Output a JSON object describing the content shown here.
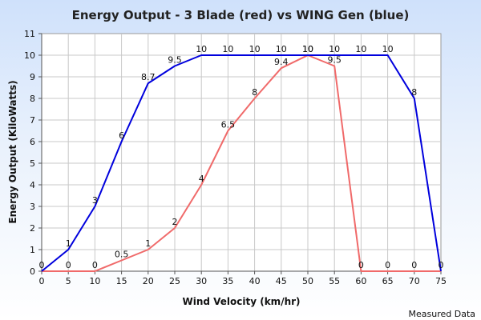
{
  "chart_data": {
    "type": "line",
    "title": "Energy Output - 3 Blade (red) vs WING Gen (blue)",
    "xlabel": "Wind Velocity (km/hr)",
    "ylabel": "Energy Output (KiloWatts)",
    "xlim": [
      0,
      75
    ],
    "ylim": [
      0,
      11
    ],
    "x_ticks": [
      0,
      5,
      10,
      15,
      20,
      25,
      30,
      35,
      40,
      45,
      50,
      55,
      60,
      65,
      70,
      75
    ],
    "y_ticks": [
      0,
      1,
      2,
      3,
      4,
      5,
      6,
      7,
      8,
      9,
      10,
      11
    ],
    "grid": true,
    "footnote": "Measured Data",
    "series": [
      {
        "color": "#0000dd",
        "x": [
          0,
          5,
          10,
          15,
          20,
          25,
          30,
          35,
          40,
          45,
          50,
          55,
          60,
          65,
          70,
          75
        ],
        "values": [
          0,
          1,
          3,
          6,
          8.7,
          9.5,
          10,
          10,
          10,
          10,
          10,
          10,
          10,
          10,
          8,
          0
        ],
        "labels": [
          "0",
          "1",
          "3",
          "6",
          "8.7",
          "9.5",
          "10",
          "10",
          "10",
          "10",
          "10",
          "10",
          "10",
          "10",
          "8",
          "0"
        ]
      },
      {
        "color": "#f06a6a",
        "x": [
          0,
          5,
          10,
          15,
          20,
          25,
          30,
          35,
          40,
          45,
          50,
          55,
          60,
          65,
          70,
          75
        ],
        "values": [
          0,
          0,
          0,
          0.5,
          1,
          2,
          4,
          6.5,
          8,
          9.4,
          10,
          9.5,
          0,
          0,
          0,
          0
        ],
        "labels": [
          "",
          "0",
          "0",
          "0.5",
          "1",
          "2",
          "4",
          "6.5",
          "8",
          "9.4",
          "10",
          "9.5",
          "0",
          "0",
          "0",
          ""
        ]
      }
    ]
  }
}
